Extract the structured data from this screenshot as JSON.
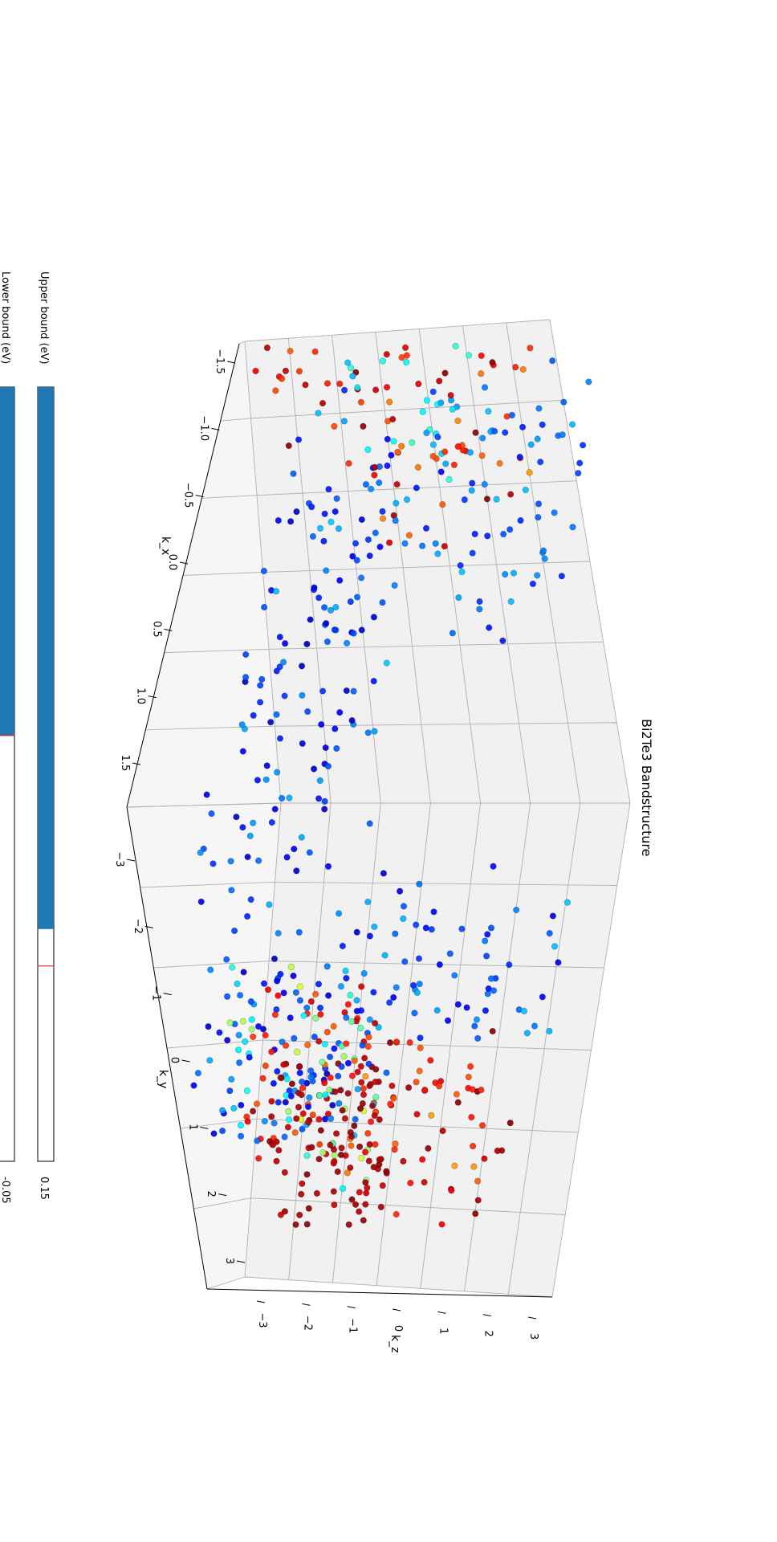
{
  "title": "Bi2Te3 Bandstructure",
  "colors": {
    "pane_back": "#f1f1f1",
    "pane_side": "#f6f6f6",
    "pane_floor": "#ececec",
    "grid": "#b0b0b0",
    "slider_fill": "#1f77b4",
    "slider_marker": "#d62728"
  },
  "sliders": [
    {
      "id": "upper",
      "label": "Upper bound (eV)",
      "value_text": "0.15",
      "fraction": 0.7
    },
    {
      "id": "lower",
      "label": "Lower bound (eV)",
      "value_text": "-0.05",
      "fraction": 0.45
    }
  ],
  "chart_data": {
    "type": "scatter",
    "subtype": "3d",
    "title": "Bi2Te3 Bandstructure",
    "xlabel": "k_x",
    "ylabel": "k_y",
    "zlabel": "k_z",
    "x_ticks": [
      "−1.5",
      "−1.0",
      "−0.5",
      "0.0",
      "0.5",
      "1.0",
      "1.5"
    ],
    "y_ticks": [
      "−3",
      "−2",
      "−1",
      "0",
      "1",
      "2",
      "3"
    ],
    "z_ticks": [
      "−3",
      "−2",
      "−1",
      "0",
      "1",
      "2",
      "3"
    ],
    "xlim": [
      -1.5,
      1.5
    ],
    "ylim": [
      -3,
      3
    ],
    "zlim": [
      -3,
      3
    ],
    "grid": true,
    "colormap": "jet",
    "clusters": [
      {
        "x": [
          -0.6,
          0.3
        ],
        "y": [
          2.2,
          3.0
        ],
        "z": [
          -0.9,
          2.7
        ],
        "c": [
          0.08,
          0.32
        ]
      },
      {
        "x": [
          0.2,
          1.1
        ],
        "y": [
          1.8,
          2.8
        ],
        "z": [
          -3.0,
          -0.4
        ],
        "c": [
          0.06,
          0.3
        ]
      },
      {
        "x": [
          0.6,
          1.5
        ],
        "y": [
          1.2,
          2.4
        ],
        "z": [
          -1.8,
          0.6
        ],
        "c": [
          0.78,
          0.98
        ]
      },
      {
        "x": [
          0.8,
          1.3
        ],
        "y": [
          0.5,
          3.0
        ],
        "z": [
          -2.2,
          0.4
        ],
        "c": [
          0.12,
          0.6
        ]
      },
      {
        "x": [
          1.0,
          1.5
        ],
        "y": [
          0.8,
          3.0
        ],
        "z": [
          0.0,
          2.6
        ],
        "c": [
          0.72,
          1.0
        ]
      },
      {
        "x": [
          -3.0,
          -1.4
        ],
        "y": [
          -3.0,
          -1.2
        ],
        "z": [
          -2.8,
          0.0
        ],
        "c": [
          0.78,
          1.0
        ]
      },
      {
        "x": [
          -2.6,
          -1.0
        ],
        "y": [
          -2.6,
          -1.0
        ],
        "z": [
          -1.6,
          0.8
        ],
        "c": [
          0.1,
          0.45
        ]
      },
      {
        "x": [
          -2.4,
          -0.8
        ],
        "y": [
          -2.6,
          -0.8
        ],
        "z": [
          -0.8,
          1.8
        ],
        "c": [
          0.72,
          1.0
        ]
      },
      {
        "x": [
          -2.0,
          -0.6
        ],
        "y": [
          -2.0,
          -0.4
        ],
        "z": [
          0.0,
          2.8
        ],
        "c": [
          0.14,
          0.32
        ]
      },
      {
        "x": [
          -1.6,
          -0.2
        ],
        "y": [
          -1.6,
          0.0
        ],
        "z": [
          -2.6,
          -0.2
        ],
        "c": [
          0.06,
          0.34
        ]
      },
      {
        "x": [
          -0.6,
          1.0
        ],
        "y": [
          -0.8,
          1.0
        ],
        "z": [
          -2.8,
          -0.3
        ],
        "c": [
          0.06,
          0.3
        ]
      },
      {
        "x": [
          1.3,
          1.5
        ],
        "y": [
          1.0,
          3.0
        ],
        "z": [
          -1.2,
          0.8
        ],
        "c": [
          0.92,
          1.0
        ]
      }
    ]
  }
}
